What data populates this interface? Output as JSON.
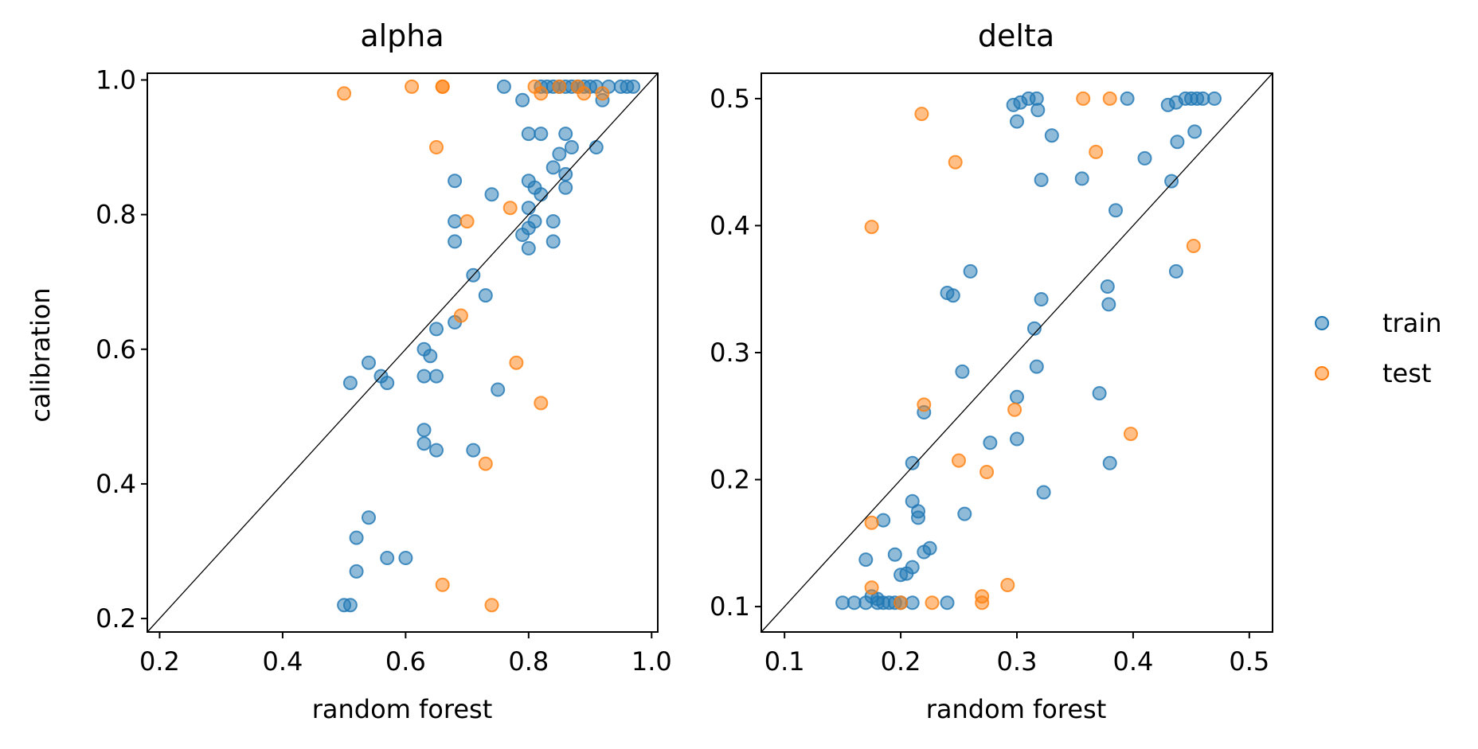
{
  "legend": {
    "placement": "right",
    "entries": [
      {
        "label": "train",
        "color": "#1f77b4"
      },
      {
        "label": "test",
        "color": "#ff7f0e"
      }
    ]
  },
  "chart_data": [
    {
      "type": "scatter",
      "title": "alpha",
      "xlabel": "random forest",
      "ylabel": "calibration",
      "xlim": [
        0.18,
        1.01
      ],
      "ylim": [
        0.18,
        1.01
      ],
      "xticks": [
        "0.2",
        "0.4",
        "0.6",
        "0.8",
        "1.0"
      ],
      "yticks": [
        "0.2",
        "0.4",
        "0.6",
        "0.8",
        "1.0"
      ],
      "diagonal": true,
      "grid": false,
      "series": [
        {
          "name": "train",
          "color": "#1f77b4",
          "points": [
            [
              0.5,
              0.22
            ],
            [
              0.51,
              0.22
            ],
            [
              0.52,
              0.27
            ],
            [
              0.52,
              0.32
            ],
            [
              0.54,
              0.35
            ],
            [
              0.57,
              0.29
            ],
            [
              0.6,
              0.29
            ],
            [
              0.51,
              0.55
            ],
            [
              0.54,
              0.58
            ],
            [
              0.56,
              0.56
            ],
            [
              0.57,
              0.55
            ],
            [
              0.63,
              0.6
            ],
            [
              0.64,
              0.59
            ],
            [
              0.63,
              0.56
            ],
            [
              0.65,
              0.56
            ],
            [
              0.65,
              0.63
            ],
            [
              0.68,
              0.64
            ],
            [
              0.63,
              0.48
            ],
            [
              0.63,
              0.46
            ],
            [
              0.65,
              0.45
            ],
            [
              0.71,
              0.71
            ],
            [
              0.73,
              0.68
            ],
            [
              0.71,
              0.45
            ],
            [
              0.75,
              0.54
            ],
            [
              0.68,
              0.85
            ],
            [
              0.68,
              0.79
            ],
            [
              0.68,
              0.76
            ],
            [
              0.74,
              0.83
            ],
            [
              0.79,
              0.77
            ],
            [
              0.8,
              0.78
            ],
            [
              0.8,
              0.75
            ],
            [
              0.8,
              0.81
            ],
            [
              0.81,
              0.79
            ],
            [
              0.84,
              0.79
            ],
            [
              0.84,
              0.76
            ],
            [
              0.8,
              0.85
            ],
            [
              0.81,
              0.84
            ],
            [
              0.82,
              0.83
            ],
            [
              0.84,
              0.87
            ],
            [
              0.85,
              0.89
            ],
            [
              0.86,
              0.86
            ],
            [
              0.86,
              0.84
            ],
            [
              0.8,
              0.92
            ],
            [
              0.82,
              0.92
            ],
            [
              0.86,
              0.92
            ],
            [
              0.87,
              0.9
            ],
            [
              0.91,
              0.9
            ],
            [
              0.76,
              0.99
            ],
            [
              0.79,
              0.97
            ],
            [
              0.82,
              0.99
            ],
            [
              0.83,
              0.99
            ],
            [
              0.84,
              0.99
            ],
            [
              0.85,
              0.99
            ],
            [
              0.86,
              0.99
            ],
            [
              0.87,
              0.99
            ],
            [
              0.88,
              0.99
            ],
            [
              0.89,
              0.99
            ],
            [
              0.9,
              0.99
            ],
            [
              0.91,
              0.99
            ],
            [
              0.92,
              0.97
            ],
            [
              0.93,
              0.99
            ],
            [
              0.95,
              0.99
            ],
            [
              0.96,
              0.99
            ],
            [
              0.97,
              0.99
            ]
          ]
        },
        {
          "name": "test",
          "color": "#ff7f0e",
          "points": [
            [
              0.5,
              0.98
            ],
            [
              0.61,
              0.99
            ],
            [
              0.66,
              0.99
            ],
            [
              0.66,
              0.99
            ],
            [
              0.65,
              0.9
            ],
            [
              0.77,
              0.81
            ],
            [
              0.7,
              0.79
            ],
            [
              0.69,
              0.65
            ],
            [
              0.78,
              0.58
            ],
            [
              0.82,
              0.52
            ],
            [
              0.73,
              0.43
            ],
            [
              0.66,
              0.25
            ],
            [
              0.74,
              0.22
            ],
            [
              0.81,
              0.99
            ],
            [
              0.82,
              0.98
            ],
            [
              0.85,
              0.99
            ],
            [
              0.88,
              0.99
            ],
            [
              0.89,
              0.98
            ],
            [
              0.92,
              0.98
            ]
          ]
        }
      ]
    },
    {
      "type": "scatter",
      "title": "delta",
      "xlabel": "random forest",
      "ylabel": "",
      "xlim": [
        0.08,
        0.52
      ],
      "ylim": [
        0.08,
        0.52
      ],
      "xticks": [
        "0.1",
        "0.2",
        "0.3",
        "0.4",
        "0.5"
      ],
      "yticks": [
        "0.1",
        "0.2",
        "0.3",
        "0.4",
        "0.5"
      ],
      "diagonal": true,
      "grid": false,
      "series": [
        {
          "name": "train",
          "color": "#1f77b4",
          "points": [
            [
              0.15,
              0.103
            ],
            [
              0.16,
              0.103
            ],
            [
              0.17,
              0.103
            ],
            [
              0.175,
              0.108
            ],
            [
              0.18,
              0.103
            ],
            [
              0.18,
              0.106
            ],
            [
              0.185,
              0.103
            ],
            [
              0.19,
              0.103
            ],
            [
              0.195,
              0.103
            ],
            [
              0.2,
              0.103
            ],
            [
              0.21,
              0.103
            ],
            [
              0.24,
              0.103
            ],
            [
              0.17,
              0.137
            ],
            [
              0.185,
              0.168
            ],
            [
              0.195,
              0.141
            ],
            [
              0.2,
              0.125
            ],
            [
              0.205,
              0.126
            ],
            [
              0.21,
              0.131
            ],
            [
              0.21,
              0.183
            ],
            [
              0.215,
              0.17
            ],
            [
              0.215,
              0.175
            ],
            [
              0.22,
              0.143
            ],
            [
              0.225,
              0.146
            ],
            [
              0.21,
              0.213
            ],
            [
              0.22,
              0.253
            ],
            [
              0.255,
              0.173
            ],
            [
              0.245,
              0.345
            ],
            [
              0.24,
              0.347
            ],
            [
              0.26,
              0.364
            ],
            [
              0.253,
              0.285
            ],
            [
              0.277,
              0.229
            ],
            [
              0.3,
              0.232
            ],
            [
              0.3,
              0.265
            ],
            [
              0.323,
              0.19
            ],
            [
              0.315,
              0.319
            ],
            [
              0.317,
              0.289
            ],
            [
              0.321,
              0.342
            ],
            [
              0.297,
              0.495
            ],
            [
              0.3,
              0.482
            ],
            [
              0.303,
              0.497
            ],
            [
              0.31,
              0.5
            ],
            [
              0.317,
              0.5
            ],
            [
              0.318,
              0.491
            ],
            [
              0.321,
              0.436
            ],
            [
              0.33,
              0.471
            ],
            [
              0.356,
              0.437
            ],
            [
              0.385,
              0.412
            ],
            [
              0.395,
              0.5
            ],
            [
              0.371,
              0.268
            ],
            [
              0.378,
              0.352
            ],
            [
              0.379,
              0.338
            ],
            [
              0.38,
              0.213
            ],
            [
              0.41,
              0.453
            ],
            [
              0.43,
              0.495
            ],
            [
              0.433,
              0.435
            ],
            [
              0.437,
              0.364
            ],
            [
              0.438,
              0.466
            ],
            [
              0.437,
              0.497
            ],
            [
              0.445,
              0.5
            ],
            [
              0.45,
              0.5
            ],
            [
              0.455,
              0.5
            ],
            [
              0.453,
              0.474
            ],
            [
              0.46,
              0.5
            ],
            [
              0.47,
              0.5
            ]
          ]
        },
        {
          "name": "test",
          "color": "#ff7f0e",
          "points": [
            [
              0.175,
              0.399
            ],
            [
              0.175,
              0.166
            ],
            [
              0.175,
              0.115
            ],
            [
              0.2,
              0.103
            ],
            [
              0.218,
              0.488
            ],
            [
              0.22,
              0.259
            ],
            [
              0.227,
              0.103
            ],
            [
              0.247,
              0.45
            ],
            [
              0.25,
              0.215
            ],
            [
              0.27,
              0.103
            ],
            [
              0.27,
              0.108
            ],
            [
              0.274,
              0.206
            ],
            [
              0.292,
              0.117
            ],
            [
              0.298,
              0.255
            ],
            [
              0.357,
              0.5
            ],
            [
              0.368,
              0.458
            ],
            [
              0.38,
              0.5
            ],
            [
              0.398,
              0.236
            ],
            [
              0.452,
              0.384
            ]
          ]
        }
      ]
    }
  ]
}
